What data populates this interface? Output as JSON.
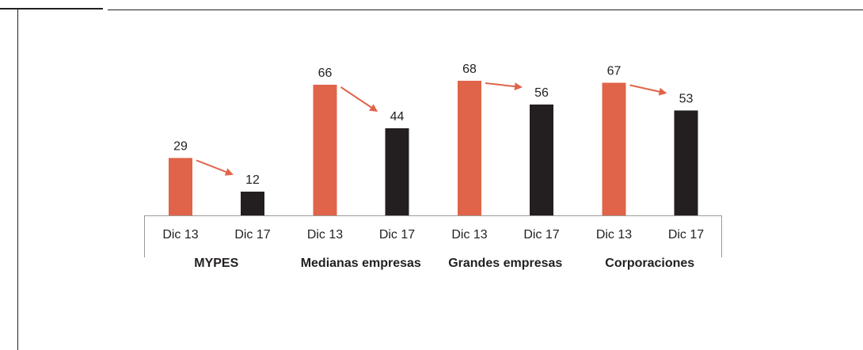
{
  "chart_data": {
    "type": "bar",
    "categories": [
      "MYPES",
      "Medianas empresas",
      "Grandes empresas",
      "Corporaciones"
    ],
    "series": [
      {
        "name": "Dic 13",
        "color": "#e0644a",
        "values": [
          29,
          66,
          68,
          67
        ]
      },
      {
        "name": "Dic 17",
        "color": "#231f20",
        "values": [
          12,
          44,
          56,
          53
        ]
      }
    ]
  }
}
